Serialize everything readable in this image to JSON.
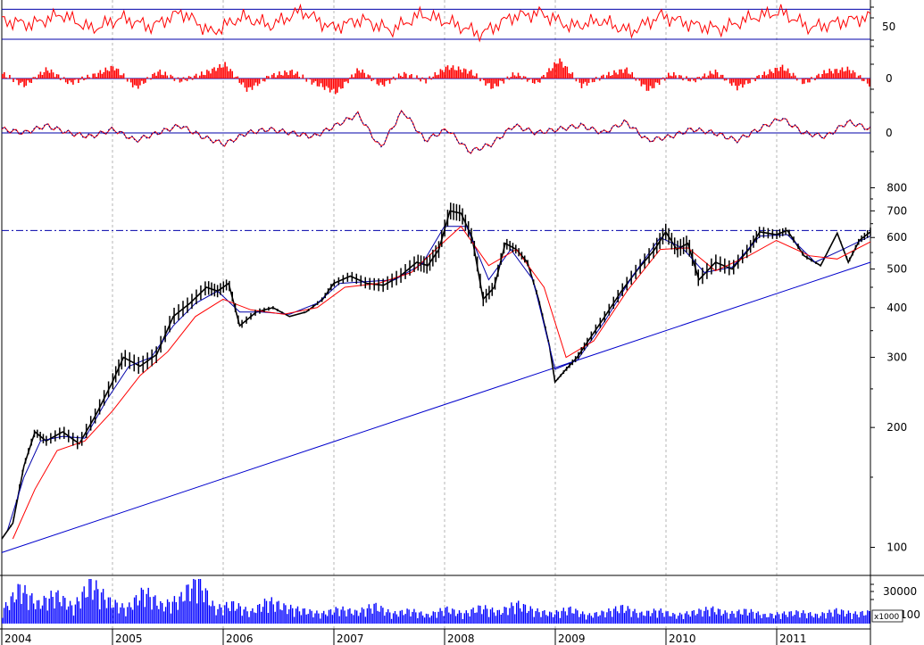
{
  "chart_data": [
    {
      "type": "line",
      "panel": "oscillator-1",
      "y_ticks": [
        "50"
      ],
      "reference_lines": [
        40,
        64
      ],
      "series": [
        {
          "color": "#ff0000",
          "values": [
            55,
            52,
            60,
            48,
            57,
            50,
            62,
            45,
            58,
            51,
            63,
            49,
            56,
            47,
            60,
            53,
            44,
            58,
            61,
            50,
            55,
            46,
            59,
            52,
            48,
            57,
            62,
            49,
            54,
            58
          ]
        }
      ]
    },
    {
      "type": "bar",
      "panel": "oscillator-2",
      "y_ticks": [
        "0"
      ],
      "color": "#ff0000",
      "values": [
        2,
        -3,
        4,
        -2,
        1,
        5,
        -4,
        3,
        -1,
        2,
        6,
        -5,
        1,
        3,
        -2,
        -6,
        4,
        -3,
        2,
        -1,
        5,
        3,
        -4,
        2,
        -2,
        8,
        -3,
        1,
        4,
        -5,
        2,
        -1,
        3,
        -4,
        1,
        5,
        -2,
        3,
        4,
        -3
      ]
    },
    {
      "type": "line",
      "panel": "oscillator-3",
      "y_ticks": [
        "0"
      ],
      "series": [
        {
          "color": "#ff0000",
          "values": [
            1,
            0,
            2,
            0,
            -1,
            1,
            -2,
            0,
            2,
            -1,
            -3,
            0,
            1,
            0,
            -1,
            2,
            5,
            -4,
            6,
            -2,
            1,
            -5,
            -3,
            2,
            0,
            1,
            2,
            0,
            3,
            -2,
            -1,
            1,
            0,
            -2,
            1,
            4,
            0,
            -1,
            3,
            1
          ]
        },
        {
          "color": "#00008b",
          "values": [
            1,
            0,
            2,
            0,
            -1,
            1,
            -2,
            0,
            2,
            -1,
            -3,
            0,
            1,
            0,
            -1,
            2,
            5,
            -4,
            6,
            -2,
            1,
            -5,
            -3,
            2,
            0,
            1,
            2,
            0,
            3,
            -2,
            -1,
            1,
            0,
            -2,
            1,
            4,
            0,
            -1,
            3,
            1
          ]
        }
      ]
    },
    {
      "type": "line",
      "panel": "price",
      "scale": "log",
      "y_ticks": [
        "800",
        "700",
        "600",
        "500",
        "400",
        "300",
        "200",
        "100"
      ],
      "ylim": [
        85,
        880
      ],
      "x_labels": [
        "2004",
        "2005",
        "2006",
        "2007",
        "2008",
        "2009",
        "2010",
        "2011"
      ],
      "x_range": [
        2004.0,
        2011.85
      ],
      "resistance_level": 625,
      "trendline": [
        {
          "x": 2004.0,
          "y": 97
        },
        {
          "x": 2011.85,
          "y": 520
        }
      ],
      "series": [
        {
          "name": "",
          "color": "#000000",
          "points": [
            [
              2004.0,
              105
            ],
            [
              2004.1,
              115
            ],
            [
              2004.2,
              160
            ],
            [
              2004.3,
              195
            ],
            [
              2004.4,
              185
            ],
            [
              2004.55,
              195
            ],
            [
              2004.7,
              182
            ],
            [
              2004.85,
              215
            ],
            [
              2005.0,
              260
            ],
            [
              2005.1,
              300
            ],
            [
              2005.25,
              285
            ],
            [
              2005.4,
              305
            ],
            [
              2005.55,
              380
            ],
            [
              2005.7,
              410
            ],
            [
              2005.85,
              450
            ],
            [
              2005.95,
              440
            ],
            [
              2006.05,
              460
            ],
            [
              2006.15,
              360
            ],
            [
              2006.3,
              390
            ],
            [
              2006.45,
              400
            ],
            [
              2006.6,
              380
            ],
            [
              2006.75,
              390
            ],
            [
              2006.9,
              420
            ],
            [
              2007.0,
              460
            ],
            [
              2007.15,
              480
            ],
            [
              2007.3,
              460
            ],
            [
              2007.45,
              455
            ],
            [
              2007.6,
              480
            ],
            [
              2007.75,
              520
            ],
            [
              2007.85,
              510
            ],
            [
              2007.95,
              560
            ],
            [
              2008.05,
              700
            ],
            [
              2008.15,
              690
            ],
            [
              2008.25,
              600
            ],
            [
              2008.35,
              420
            ],
            [
              2008.45,
              450
            ],
            [
              2008.55,
              580
            ],
            [
              2008.65,
              560
            ],
            [
              2008.75,
              520
            ],
            [
              2008.85,
              420
            ],
            [
              2008.95,
              320
            ],
            [
              2009.0,
              260
            ],
            [
              2009.1,
              280
            ],
            [
              2009.2,
              300
            ],
            [
              2009.3,
              330
            ],
            [
              2009.45,
              380
            ],
            [
              2009.6,
              440
            ],
            [
              2009.75,
              500
            ],
            [
              2009.9,
              560
            ],
            [
              2010.0,
              620
            ],
            [
              2010.1,
              560
            ],
            [
              2010.2,
              580
            ],
            [
              2010.3,
              470
            ],
            [
              2010.45,
              520
            ],
            [
              2010.6,
              500
            ],
            [
              2010.75,
              560
            ],
            [
              2010.85,
              620
            ],
            [
              2011.0,
              610
            ],
            [
              2011.1,
              625
            ],
            [
              2011.25,
              540
            ],
            [
              2011.4,
              510
            ],
            [
              2011.55,
              615
            ],
            [
              2011.65,
              520
            ],
            [
              2011.75,
              590
            ],
            [
              2011.85,
              620
            ]
          ]
        },
        {
          "name": "",
          "color": "#0000aa",
          "points": [
            [
              2004.05,
              110
            ],
            [
              2004.2,
              150
            ],
            [
              2004.35,
              185
            ],
            [
              2004.55,
              190
            ],
            [
              2004.75,
              188
            ],
            [
              2004.95,
              235
            ],
            [
              2005.15,
              285
            ],
            [
              2005.35,
              300
            ],
            [
              2005.55,
              360
            ],
            [
              2005.75,
              410
            ],
            [
              2005.95,
              440
            ],
            [
              2006.15,
              390
            ],
            [
              2006.35,
              390
            ],
            [
              2006.6,
              385
            ],
            [
              2006.85,
              410
            ],
            [
              2007.05,
              460
            ],
            [
              2007.3,
              465
            ],
            [
              2007.55,
              470
            ],
            [
              2007.8,
              515
            ],
            [
              2008.0,
              640
            ],
            [
              2008.2,
              640
            ],
            [
              2008.4,
              470
            ],
            [
              2008.6,
              560
            ],
            [
              2008.8,
              470
            ],
            [
              2009.0,
              280
            ],
            [
              2009.2,
              295
            ],
            [
              2009.45,
              370
            ],
            [
              2009.7,
              480
            ],
            [
              2009.95,
              600
            ],
            [
              2010.15,
              565
            ],
            [
              2010.35,
              490
            ],
            [
              2010.6,
              505
            ],
            [
              2010.85,
              605
            ],
            [
              2011.1,
              610
            ],
            [
              2011.35,
              520
            ],
            [
              2011.6,
              560
            ],
            [
              2011.85,
              605
            ]
          ]
        },
        {
          "name": "",
          "color": "#ff0000",
          "points": [
            [
              2004.1,
              105
            ],
            [
              2004.3,
              140
            ],
            [
              2004.5,
              175
            ],
            [
              2004.75,
              185
            ],
            [
              2005.0,
              220
            ],
            [
              2005.25,
              270
            ],
            [
              2005.5,
              310
            ],
            [
              2005.75,
              380
            ],
            [
              2006.0,
              420
            ],
            [
              2006.25,
              395
            ],
            [
              2006.55,
              385
            ],
            [
              2006.85,
              400
            ],
            [
              2007.1,
              450
            ],
            [
              2007.4,
              460
            ],
            [
              2007.7,
              490
            ],
            [
              2007.95,
              570
            ],
            [
              2008.15,
              640
            ],
            [
              2008.4,
              510
            ],
            [
              2008.65,
              560
            ],
            [
              2008.9,
              450
            ],
            [
              2009.1,
              300
            ],
            [
              2009.35,
              330
            ],
            [
              2009.65,
              440
            ],
            [
              2009.95,
              560
            ],
            [
              2010.2,
              565
            ],
            [
              2010.45,
              495
            ],
            [
              2010.75,
              540
            ],
            [
              2011.0,
              590
            ],
            [
              2011.3,
              540
            ],
            [
              2011.55,
              530
            ],
            [
              2011.85,
              585
            ]
          ]
        }
      ]
    },
    {
      "type": "bar",
      "panel": "volume",
      "y_ticks": [
        "30000",
        "100"
      ],
      "unit_label": "x1000",
      "color": "#0000ff",
      "values": [
        8,
        22,
        12,
        18,
        10,
        25,
        14,
        9,
        20,
        11,
        15,
        28,
        9,
        12,
        7,
        14,
        10,
        8,
        6,
        9,
        7,
        11,
        6,
        8,
        5,
        9,
        6,
        10,
        7,
        12,
        8,
        6,
        9,
        5,
        7,
        10,
        6,
        8,
        5,
        7,
        9,
        6,
        8,
        5,
        6,
        7,
        5,
        8,
        6,
        7
      ]
    }
  ]
}
